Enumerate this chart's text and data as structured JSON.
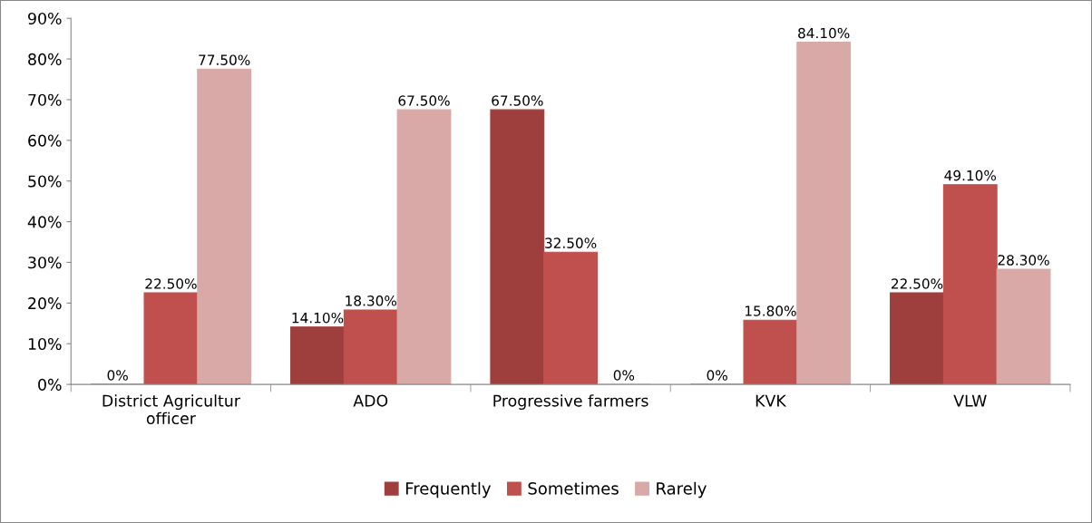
{
  "chart_data": {
    "type": "bar",
    "categories": [
      "District Agricultur\nofficer",
      "ADO",
      "Progressive farmers",
      "KVK",
      "VLW"
    ],
    "series": [
      {
        "name": "Frequently",
        "color": "#9e3f3d",
        "values": [
          0,
          14.1,
          67.5,
          0,
          22.5
        ],
        "value_labels": [
          "0%",
          "14.10%",
          "67.50%",
          "0%",
          "22.50%"
        ]
      },
      {
        "name": "Sometimes",
        "color": "#c0504d",
        "values": [
          22.5,
          18.3,
          32.5,
          15.8,
          49.1
        ],
        "value_labels": [
          "22.50%",
          "18.30%",
          "32.50%",
          "15.80%",
          "49.10%"
        ]
      },
      {
        "name": "Rarely",
        "color": "#d9a9a8",
        "values": [
          77.5,
          67.5,
          0,
          84.1,
          28.3
        ],
        "value_labels": [
          "77.50%",
          "67.50%",
          "0%",
          "84.10%",
          "28.30%"
        ]
      }
    ],
    "ylim": [
      0,
      90
    ],
    "yticks": [
      {
        "value": 0,
        "label": "0%"
      },
      {
        "value": 10,
        "label": "10%"
      },
      {
        "value": 20,
        "label": "20%"
      },
      {
        "value": 30,
        "label": "30%"
      },
      {
        "value": 40,
        "label": "40%"
      },
      {
        "value": 50,
        "label": "50%"
      },
      {
        "value": 60,
        "label": "60%"
      },
      {
        "value": 70,
        "label": "70%"
      },
      {
        "value": 80,
        "label": "80%"
      },
      {
        "value": 90,
        "label": "90%"
      }
    ],
    "grid": false,
    "legend": "bottom"
  }
}
